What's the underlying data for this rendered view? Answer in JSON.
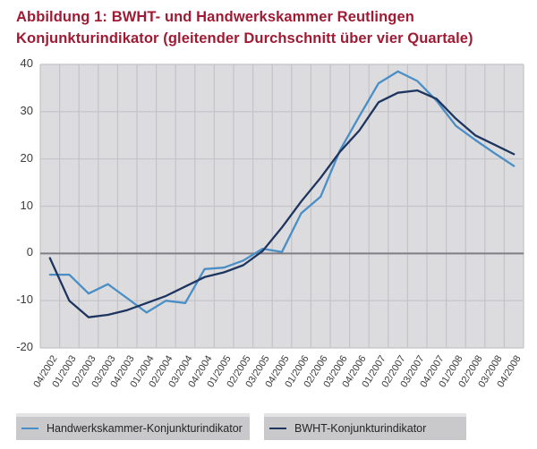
{
  "title": {
    "line1": "Abbildung 1: BWHT- und Handwerkskammer  Reutlingen",
    "line2": "Konjunkturindikator (gleitender Durchschnitt über vier Quartale)"
  },
  "colors": {
    "title": "#a11a33",
    "axis_text": "#3c3c3e",
    "plot_bg": "#dcdcdf",
    "grid": "#c3c3c8",
    "zero_line": "#7f7f83",
    "legend_bg": "#c9c9cc",
    "legend_strip": "#e3e3e5",
    "legend_text": "#262626",
    "page_bg": "#ffffff"
  },
  "chart_data": {
    "type": "line",
    "title": "Abbildung 1: BWHT- und Handwerkskammer Reutlingen Konjunkturindikator (gleitender Durchschnitt über vier Quartale)",
    "xlabel": "",
    "ylabel": "",
    "ylim": [
      -20,
      40
    ],
    "yticks": [
      40,
      30,
      20,
      10,
      0,
      -10,
      -20
    ],
    "grid": true,
    "legend_position": "bottom",
    "categories": [
      "04/2002",
      "01/2003",
      "02/2003",
      "03/2003",
      "04/2003",
      "01/2004",
      "02/2004",
      "03/2004",
      "04/2004",
      "01/2005",
      "02/2005",
      "03/2005",
      "04/2005",
      "01/2006",
      "02/2006",
      "03/2006",
      "04/2006",
      "01/2007",
      "02/2007",
      "03/2007",
      "04/2007",
      "01/2008",
      "02/2008",
      "03/2008",
      "04/2008"
    ],
    "series": [
      {
        "name": "Handwerkskammer-Konjunkturindikator",
        "color": "#4a8ec6",
        "values": [
          -4.5,
          -4.5,
          -8.5,
          -6.5,
          -9.5,
          -12.5,
          -10,
          -10.5,
          -3.3,
          -3,
          -1.5,
          1,
          0.3,
          8.5,
          12,
          21.8,
          29,
          36,
          38.5,
          36.5,
          32.3,
          27,
          24,
          21.2,
          18.5
        ]
      },
      {
        "name": "BWHT-Konjunkturindikator",
        "color": "#1e3560",
        "values": [
          -1,
          -10,
          -13.5,
          -13,
          -12,
          -10.5,
          -9,
          -7,
          -5,
          -4,
          -2.5,
          0.5,
          5.5,
          11,
          16,
          21.5,
          26,
          32,
          34,
          34.5,
          32.7,
          28.5,
          25,
          23,
          21
        ]
      }
    ]
  }
}
